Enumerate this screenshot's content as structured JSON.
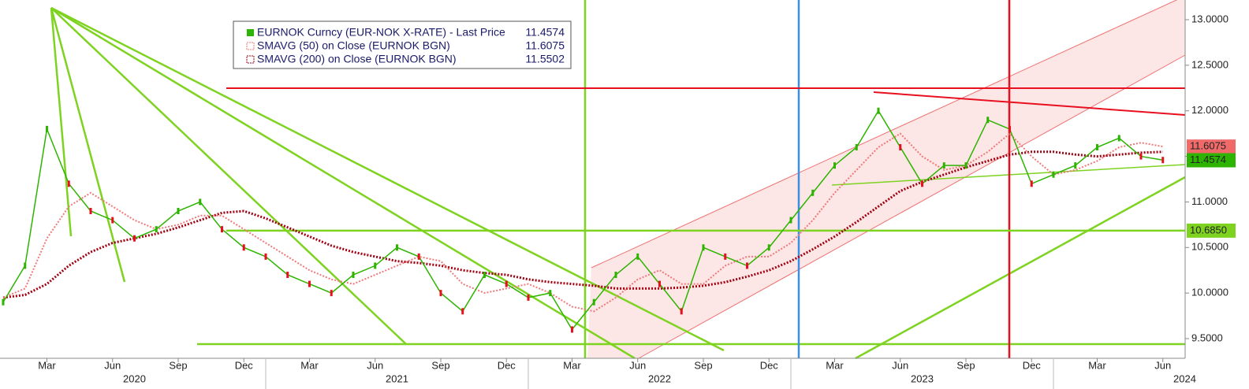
{
  "chart_data": {
    "type": "line",
    "x": [
      "2020-01",
      "2020-02",
      "2020-03",
      "2020-04",
      "2020-05",
      "2020-06",
      "2020-07",
      "2020-08",
      "2020-09",
      "2020-10",
      "2020-11",
      "2020-12",
      "2021-01",
      "2021-02",
      "2021-03",
      "2021-04",
      "2021-05",
      "2021-06",
      "2021-07",
      "2021-08",
      "2021-09",
      "2021-10",
      "2021-11",
      "2021-12",
      "2022-01",
      "2022-02",
      "2022-03",
      "2022-04",
      "2022-05",
      "2022-06",
      "2022-07",
      "2022-08",
      "2022-09",
      "2022-10",
      "2022-11",
      "2022-12",
      "2023-01",
      "2023-02",
      "2023-03",
      "2023-04",
      "2023-05",
      "2023-06",
      "2023-07",
      "2023-08",
      "2023-09",
      "2023-10",
      "2023-11",
      "2023-12",
      "2024-01",
      "2024-02",
      "2024-03",
      "2024-04",
      "2024-05",
      "2024-06"
    ],
    "series": [
      {
        "name": "EURNOK Curncy (EUR-NOK X-RATE) - Last Price",
        "last": 11.4574,
        "color": "#2db400",
        "values": [
          9.9,
          10.3,
          11.8,
          11.2,
          10.9,
          10.8,
          10.6,
          10.7,
          10.9,
          11.0,
          10.7,
          10.5,
          10.4,
          10.2,
          10.1,
          10.0,
          10.2,
          10.3,
          10.5,
          10.4,
          10.0,
          9.8,
          10.2,
          10.1,
          9.95,
          10.0,
          9.6,
          9.9,
          10.2,
          10.4,
          10.1,
          9.8,
          10.5,
          10.4,
          10.3,
          10.5,
          10.8,
          11.1,
          11.4,
          11.6,
          12.0,
          11.6,
          11.2,
          11.4,
          11.4,
          11.9,
          11.8,
          11.2,
          11.3,
          11.4,
          11.6,
          11.7,
          11.5,
          11.46
        ]
      },
      {
        "name": "SMAVG (50)  on Close (EURNOK BGN)",
        "last": 11.6075,
        "color": "#f07878",
        "values": [
          9.95,
          10.05,
          10.6,
          10.95,
          11.1,
          10.95,
          10.8,
          10.7,
          10.75,
          10.85,
          10.85,
          10.7,
          10.55,
          10.4,
          10.25,
          10.15,
          10.1,
          10.2,
          10.3,
          10.4,
          10.35,
          10.1,
          10.0,
          10.05,
          10.1,
          10.0,
          9.85,
          9.8,
          9.95,
          10.15,
          10.25,
          10.1,
          10.1,
          10.3,
          10.4,
          10.4,
          10.55,
          10.8,
          11.1,
          11.35,
          11.6,
          11.75,
          11.5,
          11.35,
          11.4,
          11.55,
          11.75,
          11.5,
          11.3,
          11.35,
          11.45,
          11.6,
          11.65,
          11.6075
        ]
      },
      {
        "name": "SMAVG (200)  on Close (EURNOK BGN)",
        "last": 11.5502,
        "color": "#a00010",
        "values": [
          9.95,
          9.98,
          10.1,
          10.3,
          10.45,
          10.55,
          10.6,
          10.65,
          10.72,
          10.8,
          10.88,
          10.9,
          10.82,
          10.72,
          10.62,
          10.52,
          10.45,
          10.4,
          10.35,
          10.33,
          10.3,
          10.25,
          10.22,
          10.2,
          10.15,
          10.12,
          10.1,
          10.08,
          10.05,
          10.05,
          10.05,
          10.06,
          10.08,
          10.12,
          10.18,
          10.25,
          10.35,
          10.48,
          10.62,
          10.78,
          10.95,
          11.12,
          11.22,
          11.3,
          11.38,
          11.45,
          11.52,
          11.55,
          11.55,
          11.52,
          11.5,
          11.52,
          11.54,
          11.5502
        ]
      }
    ],
    "ylim": [
      9.284,
      13.216
    ],
    "yticks": [
      {
        "value": 9.5,
        "label": "9.5000"
      },
      {
        "value": 10,
        "label": "10.0000"
      },
      {
        "value": 10.5,
        "label": "10.5000"
      },
      {
        "value": 11,
        "label": "11.0000"
      },
      {
        "value": 11.5,
        "label": "11.5000"
      },
      {
        "value": 12,
        "label": "12.0000"
      },
      {
        "value": 12.5,
        "label": "12.5000"
      },
      {
        "value": 13,
        "label": "13.0000"
      }
    ],
    "xticks": [
      {
        "value": "2020-03",
        "label": "Mar"
      },
      {
        "value": "2020-06",
        "label": "Jun"
      },
      {
        "value": "2020-09",
        "label": "Sep"
      },
      {
        "value": "2020-12",
        "label": "Dec"
      },
      {
        "value": "2021-03",
        "label": "Mar"
      },
      {
        "value": "2021-06",
        "label": "Jun"
      },
      {
        "value": "2021-09",
        "label": "Sep"
      },
      {
        "value": "2021-12",
        "label": "Dec"
      },
      {
        "value": "2022-03",
        "label": "Mar"
      },
      {
        "value": "2022-06",
        "label": "Jun"
      },
      {
        "value": "2022-09",
        "label": "Sep"
      },
      {
        "value": "2022-12",
        "label": "Dec"
      },
      {
        "value": "2023-03",
        "label": "Mar"
      },
      {
        "value": "2023-06",
        "label": "Jun"
      },
      {
        "value": "2023-09",
        "label": "Sep"
      },
      {
        "value": "2023-12",
        "label": "Dec"
      },
      {
        "value": "2024-03",
        "label": "Mar"
      },
      {
        "value": "2024-06",
        "label": "Jun"
      }
    ],
    "years": [
      2020,
      2021,
      2022,
      2023,
      2024
    ],
    "hlines": [
      {
        "value": 10.685,
        "label": "10.6850",
        "color": "#7ed321"
      }
    ]
  }
}
